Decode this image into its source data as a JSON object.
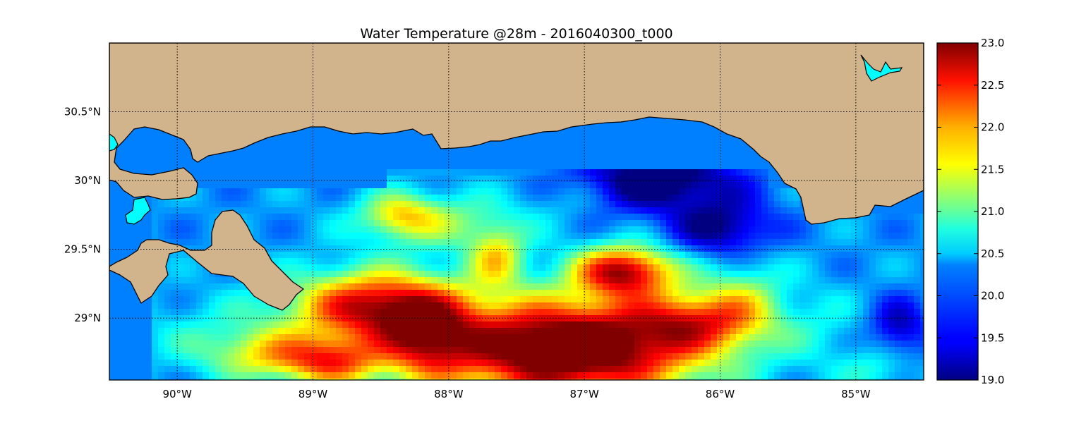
{
  "title": "Water Temperature @28m - 2016040300_t000",
  "map": {
    "lon_range": [
      -90.5,
      -84.5
    ],
    "lat_range": [
      28.55,
      31.0
    ],
    "meridians": [
      {
        "lon": -90,
        "label": "90°W"
      },
      {
        "lon": -89,
        "label": "89°W"
      },
      {
        "lon": -88,
        "label": "88°W"
      },
      {
        "lon": -87,
        "label": "87°W"
      },
      {
        "lon": -86,
        "label": "86°W"
      },
      {
        "lon": -85,
        "label": "85°W"
      }
    ],
    "parallels": [
      {
        "lat": 30.5,
        "label": "30.5°N"
      },
      {
        "lat": 30.0,
        "label": "30°N"
      },
      {
        "lat": 29.5,
        "label": "29.5°N"
      },
      {
        "lat": 29.0,
        "label": "29°N"
      }
    ],
    "grid": "dotted",
    "colors": {
      "land": "#d2b48c",
      "water_base": "#0080ff",
      "lakes": "#00ffff",
      "coastline": "#000000"
    }
  },
  "colorbar": {
    "colormap": "jet",
    "range": [
      19.0,
      23.0
    ],
    "ticks": [
      "23.0",
      "22.5",
      "22.0",
      "21.5",
      "21.0",
      "20.5",
      "20.0",
      "19.5",
      "19.0"
    ]
  }
}
